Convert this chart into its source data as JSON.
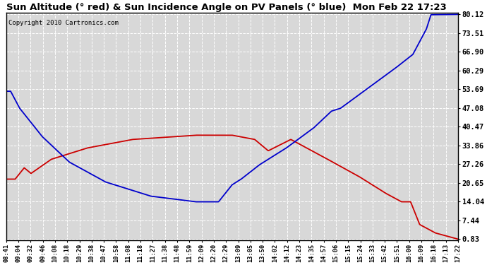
{
  "title": "Sun Altitude (° red) & Sun Incidence Angle on PV Panels (° blue)  Mon Feb 22 17:23",
  "copyright": "Copyright 2010 Cartronics.com",
  "yticks": [
    0.83,
    7.44,
    14.04,
    20.65,
    27.26,
    33.86,
    40.47,
    47.08,
    53.69,
    60.29,
    66.9,
    73.51,
    80.12
  ],
  "xtick_labels": [
    "08:41",
    "09:04",
    "09:32",
    "09:46",
    "10:08",
    "10:18",
    "10:29",
    "10:38",
    "10:47",
    "10:58",
    "11:08",
    "11:18",
    "11:27",
    "11:38",
    "11:48",
    "11:59",
    "12:09",
    "12:20",
    "12:29",
    "13:09",
    "13:05",
    "13:50",
    "14:02",
    "14:12",
    "14:23",
    "14:35",
    "14:57",
    "15:06",
    "15:15",
    "15:24",
    "15:33",
    "15:42",
    "15:51",
    "16:00",
    "16:09",
    "16:18",
    "17:13",
    "17:22"
  ],
  "bg_color": "#ffffff",
  "plot_bg": "#d8d8d8",
  "grid_color": "#ffffff",
  "red_color": "#cc0000",
  "blue_color": "#0000cc",
  "title_fontsize": 10,
  "ymin": 0.83,
  "ymax": 80.12
}
